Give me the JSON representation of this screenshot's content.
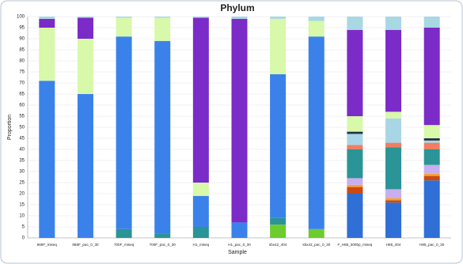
{
  "chart_data": {
    "type": "stacked_bar",
    "title": "Phylum",
    "x_label": "Sample",
    "y_label": "Proportion",
    "categories": [
      "866F_miseq",
      "866F_pac_0_30",
      "700F_miseq",
      "700F_pac_0_30",
      "H1_miseq",
      "H1_pac_0_30",
      "sbx42_404",
      "sbx42_pac_0_30",
      "F_H85_300bp_miseq",
      "H85_404",
      "H85_pac_0_30"
    ],
    "series": [
      {
        "color": "#2f6fd6",
        "values": [
          0,
          0,
          0,
          0,
          0,
          0,
          0,
          0,
          20,
          16,
          26
        ]
      },
      {
        "color": "#6ccc2e",
        "values": [
          0,
          0,
          0,
          0,
          0,
          0,
          6,
          4,
          0,
          0,
          0
        ]
      },
      {
        "color": "#cc4a10",
        "values": [
          0,
          0,
          0,
          0,
          0,
          0,
          0,
          0,
          3,
          1,
          2
        ]
      },
      {
        "color": "#f7a234",
        "values": [
          0,
          0,
          0,
          0,
          0,
          0,
          0,
          0,
          1,
          1,
          1
        ]
      },
      {
        "color": "#c9aef0",
        "values": [
          0,
          0,
          0,
          0,
          0,
          0,
          0,
          0,
          3,
          4,
          4
        ]
      },
      {
        "color": "#2a9496",
        "values": [
          0,
          0,
          4,
          2,
          5,
          0,
          3,
          0,
          13,
          19,
          7
        ]
      },
      {
        "color": "#f07e62",
        "values": [
          0,
          0,
          0,
          0,
          0,
          0,
          0,
          0,
          2,
          2,
          3
        ]
      },
      {
        "color": "#a9d6e6",
        "values": [
          0,
          0,
          0,
          0,
          0,
          0,
          0,
          0,
          5,
          11,
          1
        ]
      },
      {
        "color": "#1d3448",
        "values": [
          0,
          0,
          0,
          0,
          0,
          0,
          0,
          0,
          1,
          0,
          1
        ]
      },
      {
        "color": "#3a82ea",
        "values": [
          71,
          65,
          87,
          87,
          14,
          7,
          65,
          87,
          0,
          0,
          0
        ]
      },
      {
        "color": "#d8f8aa",
        "values": [
          24,
          25,
          8.5,
          10.5,
          6,
          0,
          25,
          7,
          7,
          3,
          6
        ]
      },
      {
        "color": "#7a2bc8",
        "values": [
          4,
          9.5,
          0,
          0,
          74.5,
          92,
          0,
          0,
          39,
          37,
          44
        ]
      },
      {
        "color": "#a8d8e2",
        "values": [
          1,
          0.5,
          0.5,
          0.5,
          0.5,
          1,
          1,
          2,
          6,
          6,
          5
        ]
      }
    ],
    "ylim": [
      0,
      100
    ],
    "yticks": [
      0,
      5,
      10,
      15,
      20,
      25,
      30,
      35,
      40,
      45,
      50,
      55,
      60,
      65,
      70,
      75,
      80,
      85,
      90,
      95,
      100
    ],
    "grid": true
  }
}
